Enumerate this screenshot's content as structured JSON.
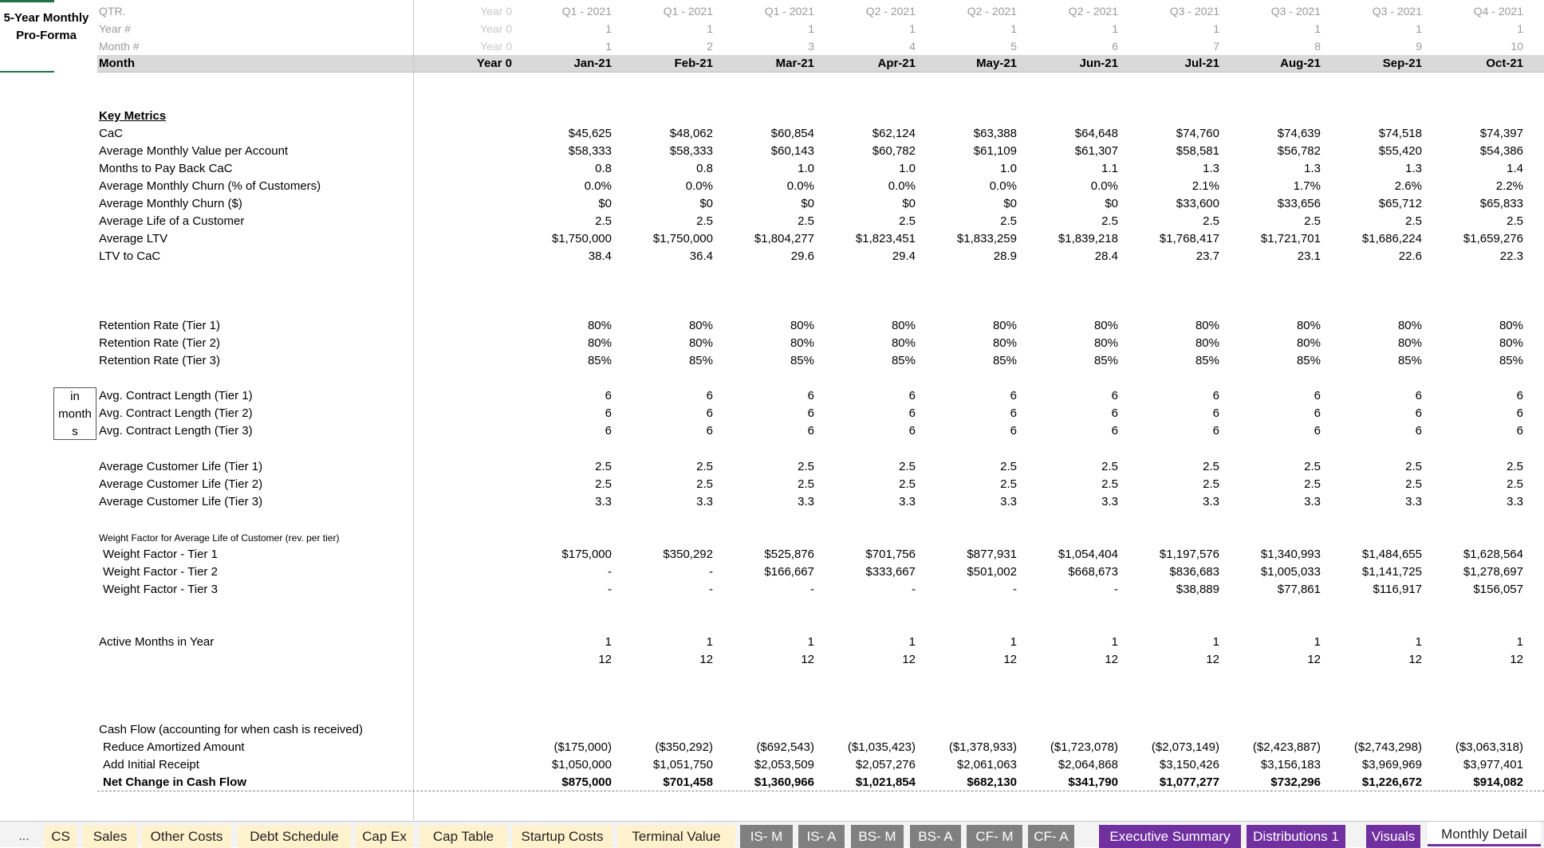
{
  "title": "5-Year Monthly Pro-Forma",
  "header_rows": [
    {
      "label": "QTR.",
      "values": [
        "Year 0",
        "Q1 - 2021",
        "Q1 - 2021",
        "Q1 - 2021",
        "Q2 - 2021",
        "Q2 - 2021",
        "Q2 - 2021",
        "Q3 - 2021",
        "Q3 - 2021",
        "Q3 - 2021",
        "Q4 - 2021"
      ]
    },
    {
      "label": "Year #",
      "values": [
        "Year 0",
        "1",
        "1",
        "1",
        "1",
        "1",
        "1",
        "1",
        "1",
        "1",
        "1"
      ]
    },
    {
      "label": "Month #",
      "values": [
        "Year 0",
        "1",
        "2",
        "3",
        "4",
        "5",
        "6",
        "7",
        "8",
        "9",
        "10"
      ]
    }
  ],
  "month_row": {
    "label": "Month",
    "values": [
      "Year 0",
      "Jan-21",
      "Feb-21",
      "Mar-21",
      "Apr-21",
      "May-21",
      "Jun-21",
      "Jul-21",
      "Aug-21",
      "Sep-21",
      "Oct-21"
    ]
  },
  "key_metrics_heading": "Key Metrics",
  "key_metrics": [
    {
      "label": "CaC",
      "values": [
        "$45,625",
        "$48,062",
        "$60,854",
        "$62,124",
        "$63,388",
        "$64,648",
        "$74,760",
        "$74,639",
        "$74,518",
        "$74,397"
      ]
    },
    {
      "label": "Average Monthly Value per Account",
      "values": [
        "$58,333",
        "$58,333",
        "$60,143",
        "$60,782",
        "$61,109",
        "$61,307",
        "$58,581",
        "$56,782",
        "$55,420",
        "$54,386"
      ]
    },
    {
      "label": "Months to Pay Back CaC",
      "values": [
        "0.8",
        "0.8",
        "1.0",
        "1.0",
        "1.0",
        "1.1",
        "1.3",
        "1.3",
        "1.3",
        "1.4"
      ]
    },
    {
      "label": "Average Monthly Churn (% of Customers)",
      "values": [
        "0.0%",
        "0.0%",
        "0.0%",
        "0.0%",
        "0.0%",
        "0.0%",
        "2.1%",
        "1.7%",
        "2.6%",
        "2.2%"
      ]
    },
    {
      "label": "Average Monthly Churn ($)",
      "values": [
        "$0",
        "$0",
        "$0",
        "$0",
        "$0",
        "$0",
        "$33,600",
        "$33,656",
        "$65,712",
        "$65,833"
      ]
    },
    {
      "label": "Average Life of a Customer",
      "values": [
        "2.5",
        "2.5",
        "2.5",
        "2.5",
        "2.5",
        "2.5",
        "2.5",
        "2.5",
        "2.5",
        "2.5"
      ]
    },
    {
      "label": "Average LTV",
      "values": [
        "$1,750,000",
        "$1,750,000",
        "$1,804,277",
        "$1,823,451",
        "$1,833,259",
        "$1,839,218",
        "$1,768,417",
        "$1,721,701",
        "$1,686,224",
        "$1,659,276"
      ]
    },
    {
      "label": "LTV to CaC",
      "values": [
        "38.4",
        "36.4",
        "29.6",
        "29.4",
        "28.9",
        "28.4",
        "23.7",
        "23.1",
        "22.6",
        "22.3"
      ]
    }
  ],
  "retention": [
    {
      "label": "Retention Rate (Tier 1)",
      "values": [
        "80%",
        "80%",
        "80%",
        "80%",
        "80%",
        "80%",
        "80%",
        "80%",
        "80%",
        "80%"
      ]
    },
    {
      "label": "Retention Rate (Tier 2)",
      "values": [
        "80%",
        "80%",
        "80%",
        "80%",
        "80%",
        "80%",
        "80%",
        "80%",
        "80%",
        "80%"
      ]
    },
    {
      "label": "Retention Rate (Tier 3)",
      "values": [
        "85%",
        "85%",
        "85%",
        "85%",
        "85%",
        "85%",
        "85%",
        "85%",
        "85%",
        "85%"
      ]
    }
  ],
  "in_months_box": [
    "in",
    "month",
    "s"
  ],
  "contract_length": [
    {
      "label": "Avg. Contract Length (Tier 1)",
      "values": [
        "6",
        "6",
        "6",
        "6",
        "6",
        "6",
        "6",
        "6",
        "6",
        "6"
      ]
    },
    {
      "label": "Avg. Contract Length (Tier 2)",
      "values": [
        "6",
        "6",
        "6",
        "6",
        "6",
        "6",
        "6",
        "6",
        "6",
        "6"
      ]
    },
    {
      "label": "Avg. Contract Length (Tier 3)",
      "values": [
        "6",
        "6",
        "6",
        "6",
        "6",
        "6",
        "6",
        "6",
        "6",
        "6"
      ]
    }
  ],
  "customer_life": [
    {
      "label": "Average Customer Life (Tier 1)",
      "values": [
        "2.5",
        "2.5",
        "2.5",
        "2.5",
        "2.5",
        "2.5",
        "2.5",
        "2.5",
        "2.5",
        "2.5"
      ]
    },
    {
      "label": "Average Customer Life (Tier 2)",
      "values": [
        "2.5",
        "2.5",
        "2.5",
        "2.5",
        "2.5",
        "2.5",
        "2.5",
        "2.5",
        "2.5",
        "2.5"
      ]
    },
    {
      "label": "Average Customer Life (Tier 3)",
      "values": [
        "3.3",
        "3.3",
        "3.3",
        "3.3",
        "3.3",
        "3.3",
        "3.3",
        "3.3",
        "3.3",
        "3.3"
      ]
    }
  ],
  "weight_heading": "Weight Factor for Average Life of Customer (rev. per tier)",
  "weight_factors": [
    {
      "label": "Weight Factor - Tier 1",
      "values": [
        "$175,000",
        "$350,292",
        "$525,876",
        "$701,756",
        "$877,931",
        "$1,054,404",
        "$1,197,576",
        "$1,340,993",
        "$1,484,655",
        "$1,628,564"
      ]
    },
    {
      "label": "Weight Factor - Tier 2",
      "values": [
        "-",
        "-",
        "$166,667",
        "$333,667",
        "$501,002",
        "$668,673",
        "$836,683",
        "$1,005,033",
        "$1,141,725",
        "$1,278,697"
      ]
    },
    {
      "label": "Weight Factor - Tier 3",
      "values": [
        "-",
        "-",
        "-",
        "-",
        "-",
        "-",
        "$38,889",
        "$77,861",
        "$116,917",
        "$156,057"
      ]
    }
  ],
  "active_months": [
    {
      "label": "Active Months in Year",
      "values": [
        "1",
        "1",
        "1",
        "1",
        "1",
        "1",
        "1",
        "1",
        "1",
        "1"
      ]
    },
    {
      "label": "",
      "values": [
        "12",
        "12",
        "12",
        "12",
        "12",
        "12",
        "12",
        "12",
        "12",
        "12"
      ]
    }
  ],
  "cash_flow_heading": "Cash Flow (accounting for when cash is received)",
  "cash_flow": [
    {
      "label": "Reduce Amortized Amount",
      "values": [
        "($175,000)",
        "($350,292)",
        "($692,543)",
        "($1,035,423)",
        "($1,378,933)",
        "($1,723,078)",
        "($2,073,149)",
        "($2,423,887)",
        "($2,743,298)",
        "($3,063,318)"
      ]
    },
    {
      "label": "Add Initial Receipt",
      "values": [
        "$1,050,000",
        "$1,051,750",
        "$2,053,509",
        "$2,057,276",
        "$2,061,063",
        "$2,064,868",
        "$3,150,426",
        "$3,156,183",
        "$3,969,969",
        "$3,977,401"
      ]
    }
  ],
  "net_change": {
    "label": "Net Change in Cash Flow",
    "values": [
      "$875,000",
      "$701,458",
      "$1,360,966",
      "$1,021,854",
      "$682,130",
      "$341,790",
      "$1,077,277",
      "$732,296",
      "$1,226,672",
      "$914,082"
    ]
  },
  "tabs": [
    {
      "label": "...",
      "style": "ellipsis"
    },
    {
      "label": "CS",
      "style": "yellow"
    },
    {
      "label": "Sales",
      "style": "yellow"
    },
    {
      "label": "Other Costs",
      "style": "yellow"
    },
    {
      "label": "Debt Schedule",
      "style": "yellow"
    },
    {
      "label": "Cap Ex",
      "style": "yellow"
    },
    {
      "label": "Cap Table",
      "style": "yellow"
    },
    {
      "label": "Startup Costs",
      "style": "yellow"
    },
    {
      "label": "Terminal Value",
      "style": "yellow"
    },
    {
      "label": "IS- M",
      "style": "gray"
    },
    {
      "label": "IS- A",
      "style": "gray"
    },
    {
      "label": "BS- M",
      "style": "gray"
    },
    {
      "label": "BS- A",
      "style": "gray"
    },
    {
      "label": "CF- M",
      "style": "gray"
    },
    {
      "label": "CF- A",
      "style": "gray"
    },
    {
      "label": "Executive Summary",
      "style": "purple"
    },
    {
      "label": "Distributions 1",
      "style": "purple"
    },
    {
      "label": "Visuals",
      "style": "purple"
    },
    {
      "label": "Monthly Detail",
      "style": "active"
    }
  ]
}
